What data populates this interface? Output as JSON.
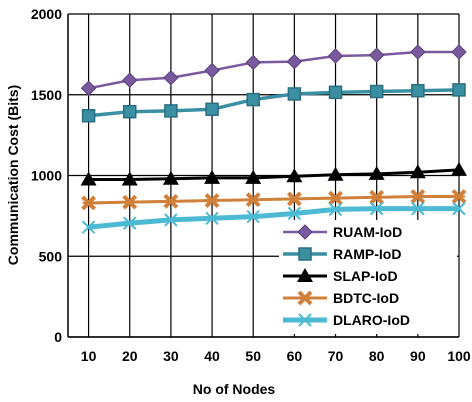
{
  "chart_data": {
    "type": "line",
    "xlabel": "No of Nodes",
    "ylabel": "Communication Cost (Bits)",
    "x": [
      10,
      20,
      30,
      40,
      50,
      60,
      70,
      80,
      90,
      100
    ],
    "x_tick_labels": [
      "10",
      "20",
      "30",
      "40",
      "50",
      "60",
      "70",
      "80",
      "90",
      "100"
    ],
    "ylim": [
      0,
      2000
    ],
    "y_tick_labels": [
      "0",
      "500",
      "1000",
      "1500",
      "2000"
    ],
    "grid": "vertical lines at each node count; horizontal lines every 500",
    "legend_position": "bottom-right",
    "series": [
      {
        "name": "RUAM-IoD",
        "values": [
          1540,
          1590,
          1605,
          1650,
          1700,
          1705,
          1740,
          1745,
          1765,
          1765
        ],
        "color": "#7A5A9E",
        "marker": "diamond"
      },
      {
        "name": "RAMP-IoD",
        "values": [
          1370,
          1395,
          1400,
          1410,
          1470,
          1505,
          1515,
          1520,
          1525,
          1530
        ],
        "color": "#3A8FA3",
        "marker": "square"
      },
      {
        "name": "SLAP-IoD",
        "values": [
          975,
          975,
          980,
          985,
          985,
          995,
          1005,
          1010,
          1020,
          1035
        ],
        "color": "#000000",
        "marker": "triangle"
      },
      {
        "name": "BDTC-IoD",
        "values": [
          830,
          835,
          840,
          845,
          850,
          855,
          860,
          865,
          870,
          870
        ],
        "color": "#D0803A",
        "marker": "x-star"
      },
      {
        "name": "DLARO-IoD",
        "values": [
          680,
          705,
          725,
          735,
          745,
          765,
          790,
          795,
          795,
          795
        ],
        "color": "#4DBAD4",
        "marker": "x"
      }
    ]
  }
}
